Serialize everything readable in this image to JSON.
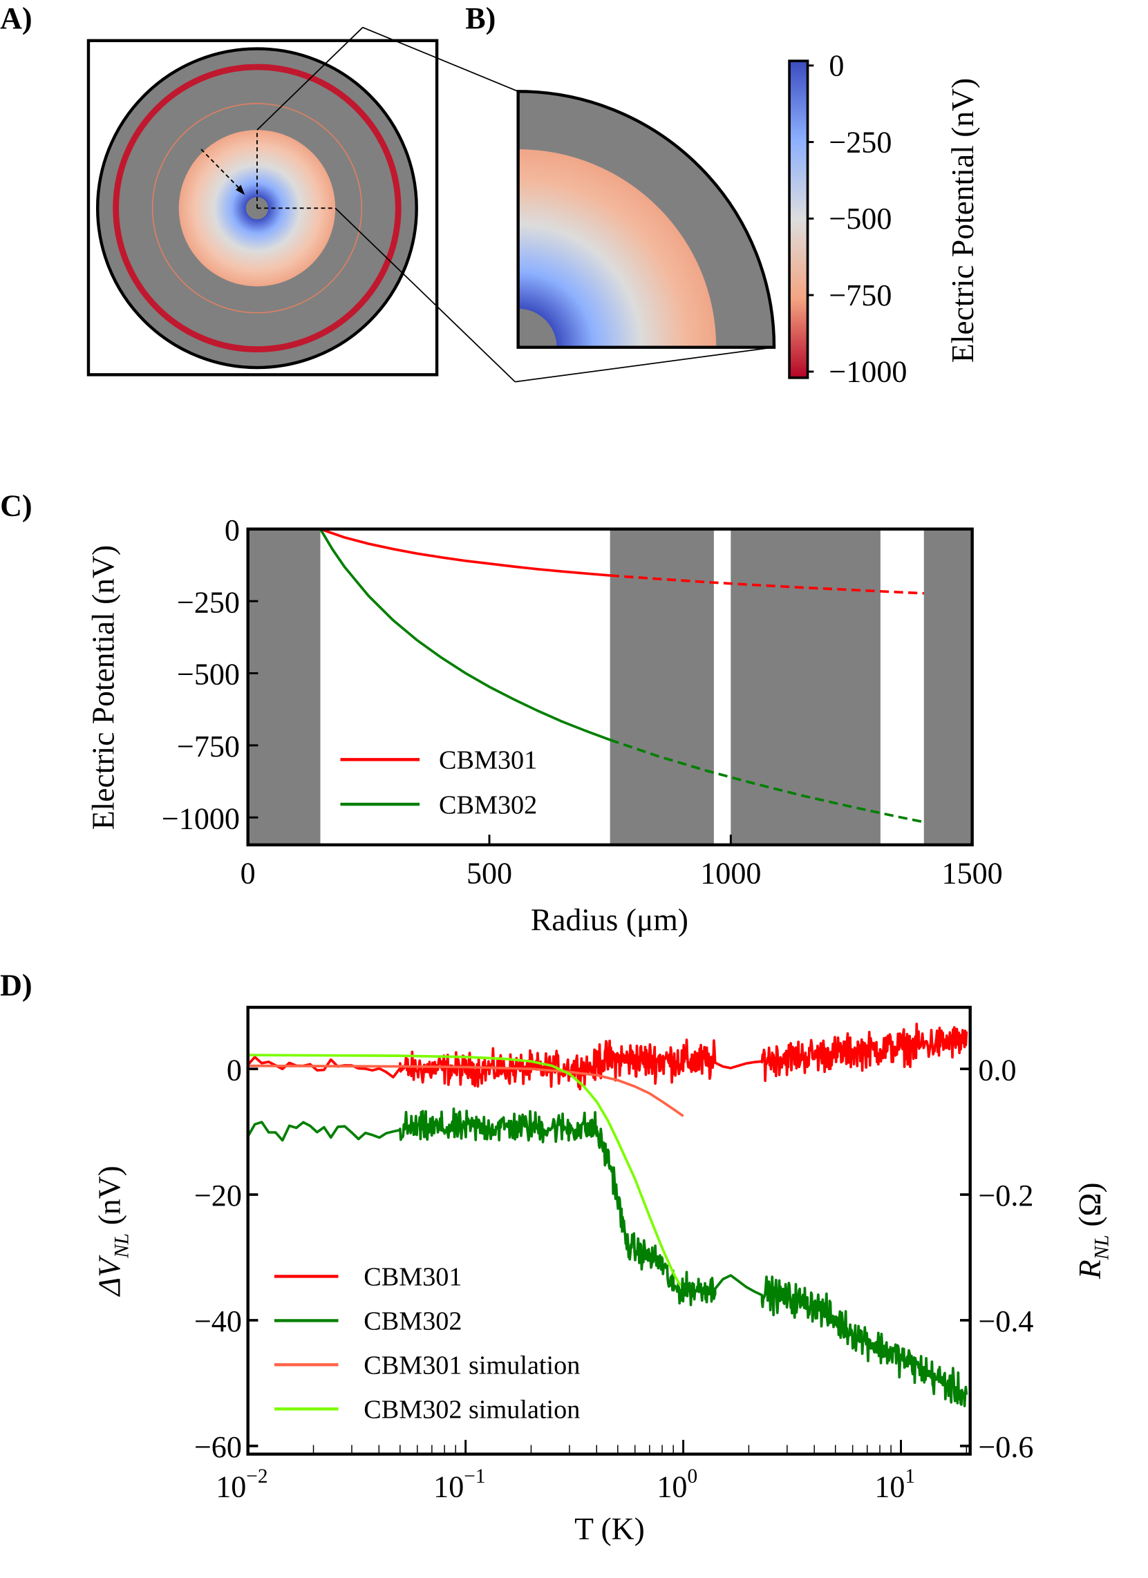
{
  "panels": {
    "a": "A)",
    "b": "B)",
    "c": "C)",
    "d": "D)"
  },
  "colorbar": {
    "label": "Electric Potential (nV)",
    "range": [
      -1020,
      15
    ],
    "ticks": [
      {
        "v": 0,
        "label": "0"
      },
      {
        "v": -250,
        "label": "−250"
      },
      {
        "v": -500,
        "label": "−500"
      },
      {
        "v": -750,
        "label": "−750"
      },
      {
        "v": -1000,
        "label": "−1000"
      }
    ],
    "colors": [
      "#3b4cc0",
      "#8db0fe",
      "#dddddd",
      "#f4a582",
      "#b40426"
    ]
  },
  "chart_data": [
    {
      "type": "line",
      "panel": "C",
      "xlabel": "Radius (μm)",
      "ylabel": "Electric Potential (nV)",
      "xlim": [
        0,
        1500
      ],
      "ylim": [
        -1095,
        0
      ],
      "xticks": [
        {
          "v": 0,
          "label": "0"
        },
        {
          "v": 500,
          "label": "500"
        },
        {
          "v": 1000,
          "label": "1000"
        },
        {
          "v": 1500,
          "label": "1500"
        }
      ],
      "yticks": [
        {
          "v": 0,
          "label": "0"
        },
        {
          "v": -250,
          "label": "−250"
        },
        {
          "v": -500,
          "label": "−500"
        },
        {
          "v": -750,
          "label": "−750"
        },
        {
          "v": -1000,
          "label": "−1000"
        }
      ],
      "shaded_regions": [
        [
          0,
          150
        ],
        [
          750,
          965
        ],
        [
          1000,
          1310
        ],
        [
          1400,
          1500
        ]
      ],
      "legend_position": "lower-left",
      "series": [
        {
          "name": "CBM301",
          "color": "#ff0000",
          "solid": [
            [
              150,
              0
            ],
            [
              200,
              -29
            ],
            [
              250,
              -51
            ],
            [
              300,
              -69
            ],
            [
              350,
              -85
            ],
            [
              400,
              -98
            ],
            [
              450,
              -110
            ],
            [
              500,
              -120
            ],
            [
              550,
              -130
            ],
            [
              600,
              -139
            ],
            [
              650,
              -147
            ],
            [
              700,
              -154
            ],
            [
              750,
              -161
            ]
          ],
          "dashed": [
            [
              750,
              -161
            ],
            [
              850,
              -173
            ],
            [
              950,
              -184
            ],
            [
              1050,
              -194
            ],
            [
              1150,
              -203
            ],
            [
              1250,
              -211
            ],
            [
              1350,
              -219
            ],
            [
              1400,
              -223
            ]
          ]
        },
        {
          "name": "CBM302",
          "color": "#007f00",
          "solid": [
            [
              150,
              0
            ],
            [
              175,
              -70
            ],
            [
              200,
              -131
            ],
            [
              250,
              -232
            ],
            [
              300,
              -315
            ],
            [
              350,
              -385
            ],
            [
              400,
              -445
            ],
            [
              450,
              -499
            ],
            [
              500,
              -547
            ],
            [
              550,
              -590
            ],
            [
              600,
              -630
            ],
            [
              650,
              -667
            ],
            [
              700,
              -700
            ],
            [
              750,
              -731
            ]
          ],
          "dashed": [
            [
              750,
              -731
            ],
            [
              850,
              -788
            ],
            [
              950,
              -838
            ],
            [
              1050,
              -883
            ],
            [
              1150,
              -925
            ],
            [
              1250,
              -963
            ],
            [
              1350,
              -999
            ],
            [
              1400,
              -1016
            ]
          ]
        }
      ]
    },
    {
      "type": "line",
      "panel": "D",
      "xlabel": "T (K)",
      "ylabel": "ΔV_NL (nV)",
      "ylabel_main": "ΔV",
      "ylabel_sub": "NL",
      "ylabel_unit": "(nV)",
      "y2label_main": "R",
      "y2label_sub": "NL",
      "y2label_unit": "(Ω)",
      "xscale": "log",
      "xlim": [
        0.01,
        20.8
      ],
      "ylim": [
        -61.3,
        9.8
      ],
      "y2lim": [
        -0.613,
        0.098
      ],
      "xticks": [
        {
          "v": 0.01,
          "base": "10",
          "exp": "−2"
        },
        {
          "v": 0.1,
          "base": "10",
          "exp": "−1"
        },
        {
          "v": 1,
          "base": "10",
          "exp": "0"
        },
        {
          "v": 10,
          "base": "10",
          "exp": "1"
        }
      ],
      "yticks": [
        {
          "v": 0,
          "label": "0"
        },
        {
          "v": -20,
          "label": "−20"
        },
        {
          "v": -40,
          "label": "−40"
        },
        {
          "v": -60,
          "label": "−60"
        }
      ],
      "y2ticks": [
        {
          "v": 0.0,
          "label": "0.0"
        },
        {
          "v": -0.2,
          "label": "−0.2"
        },
        {
          "v": -0.4,
          "label": "−0.4"
        },
        {
          "v": -0.6,
          "label": "−0.6"
        }
      ],
      "legend_position": "lower-left",
      "series": [
        {
          "name": "CBM301",
          "color": "#ff0000",
          "width": 2.5,
          "segments": [
            {
              "trend": [
                [
                  0.01,
                  0.5
                ],
                [
                  0.05,
                  0.2
                ]
              ],
              "noise": 1.5,
              "samples": 22
            },
            {
              "trend": [
                [
                  0.05,
                  0
                ],
                [
                  0.2,
                  0
                ],
                [
                  0.4,
                  0.3
                ]
              ],
              "noise": 2.2,
              "samples": 260
            },
            {
              "trend": [
                [
                  0.4,
                  1.5
                ],
                [
                  1.0,
                  1.3
                ],
                [
                  1.4,
                  1.0
                ]
              ],
              "noise": 2.6,
              "samples": 200
            },
            {
              "trend": [
                [
                  1.4,
                  1.0
                ],
                [
                  1.6,
                  0
                ],
                [
                  2.0,
                  1.0
                ],
                [
                  2.3,
                  1.2
                ]
              ],
              "noise": 0,
              "samples": 6
            },
            {
              "trend": [
                [
                  2.3,
                  1.5
                ],
                [
                  5,
                  2.5
                ],
                [
                  20,
                  4.5
                ]
              ],
              "noise": 2.4,
              "samples": 320
            }
          ]
        },
        {
          "name": "CBM302",
          "color": "#007f00",
          "width": 2.5,
          "segments": [
            {
              "trend": [
                [
                  0.01,
                  -10
                ],
                [
                  0.05,
                  -10.5
                ]
              ],
              "noise": 1.5,
              "samples": 22
            },
            {
              "trend": [
                [
                  0.05,
                  -9.5
                ],
                [
                  0.2,
                  -9.2
                ],
                [
                  0.4,
                  -9.5
                ]
              ],
              "noise": 2.2,
              "samples": 260
            },
            {
              "trend": [
                [
                  0.4,
                  -10
                ],
                [
                  0.47,
                  -16
                ],
                [
                  0.55,
                  -28
                ],
                [
                  0.8,
                  -31
                ],
                [
                  0.9,
                  -35
                ],
                [
                  1.4,
                  -35
                ]
              ],
              "noise": 2.0,
              "samples": 200
            },
            {
              "trend": [
                [
                  1.4,
                  -35
                ],
                [
                  1.6,
                  -32.5
                ],
                [
                  2.0,
                  -35
                ],
                [
                  2.3,
                  -36
                ]
              ],
              "noise": 0,
              "samples": 6
            },
            {
              "trend": [
                [
                  2.3,
                  -35.5
                ],
                [
                  4,
                  -37.5
                ],
                [
                  6,
                  -42
                ],
                [
                  10,
                  -46
                ],
                [
                  20,
                  -52
                ]
              ],
              "noise": 2.3,
              "samples": 320
            }
          ]
        },
        {
          "name": "CBM301 simulation",
          "color": "#ff6347",
          "width": 2.5,
          "points": [
            [
              0.01,
              0.5
            ],
            [
              0.05,
              0.4
            ],
            [
              0.1,
              0.3
            ],
            [
              0.2,
              0
            ],
            [
              0.3,
              -0.5
            ],
            [
              0.4,
              -1.0
            ],
            [
              0.5,
              -1.8
            ],
            [
              0.6,
              -2.8
            ],
            [
              0.7,
              -3.9
            ],
            [
              0.8,
              -5.2
            ],
            [
              0.9,
              -6.4
            ],
            [
              1.0,
              -7.5
            ]
          ]
        },
        {
          "name": "CBM302 simulation",
          "color": "#7cfc00",
          "width": 2.5,
          "points": [
            [
              0.01,
              2.2
            ],
            [
              0.05,
              2.1
            ],
            [
              0.1,
              1.9
            ],
            [
              0.15,
              1.6
            ],
            [
              0.2,
              1.2
            ],
            [
              0.25,
              0.5
            ],
            [
              0.3,
              -0.8
            ],
            [
              0.35,
              -2.8
            ],
            [
              0.4,
              -5.2
            ],
            [
              0.45,
              -8.2
            ],
            [
              0.5,
              -11.5
            ],
            [
              0.6,
              -17.5
            ],
            [
              0.7,
              -23.5
            ],
            [
              0.8,
              -28.5
            ],
            [
              0.9,
              -32.5
            ],
            [
              0.97,
              -34.5
            ]
          ]
        }
      ]
    }
  ]
}
